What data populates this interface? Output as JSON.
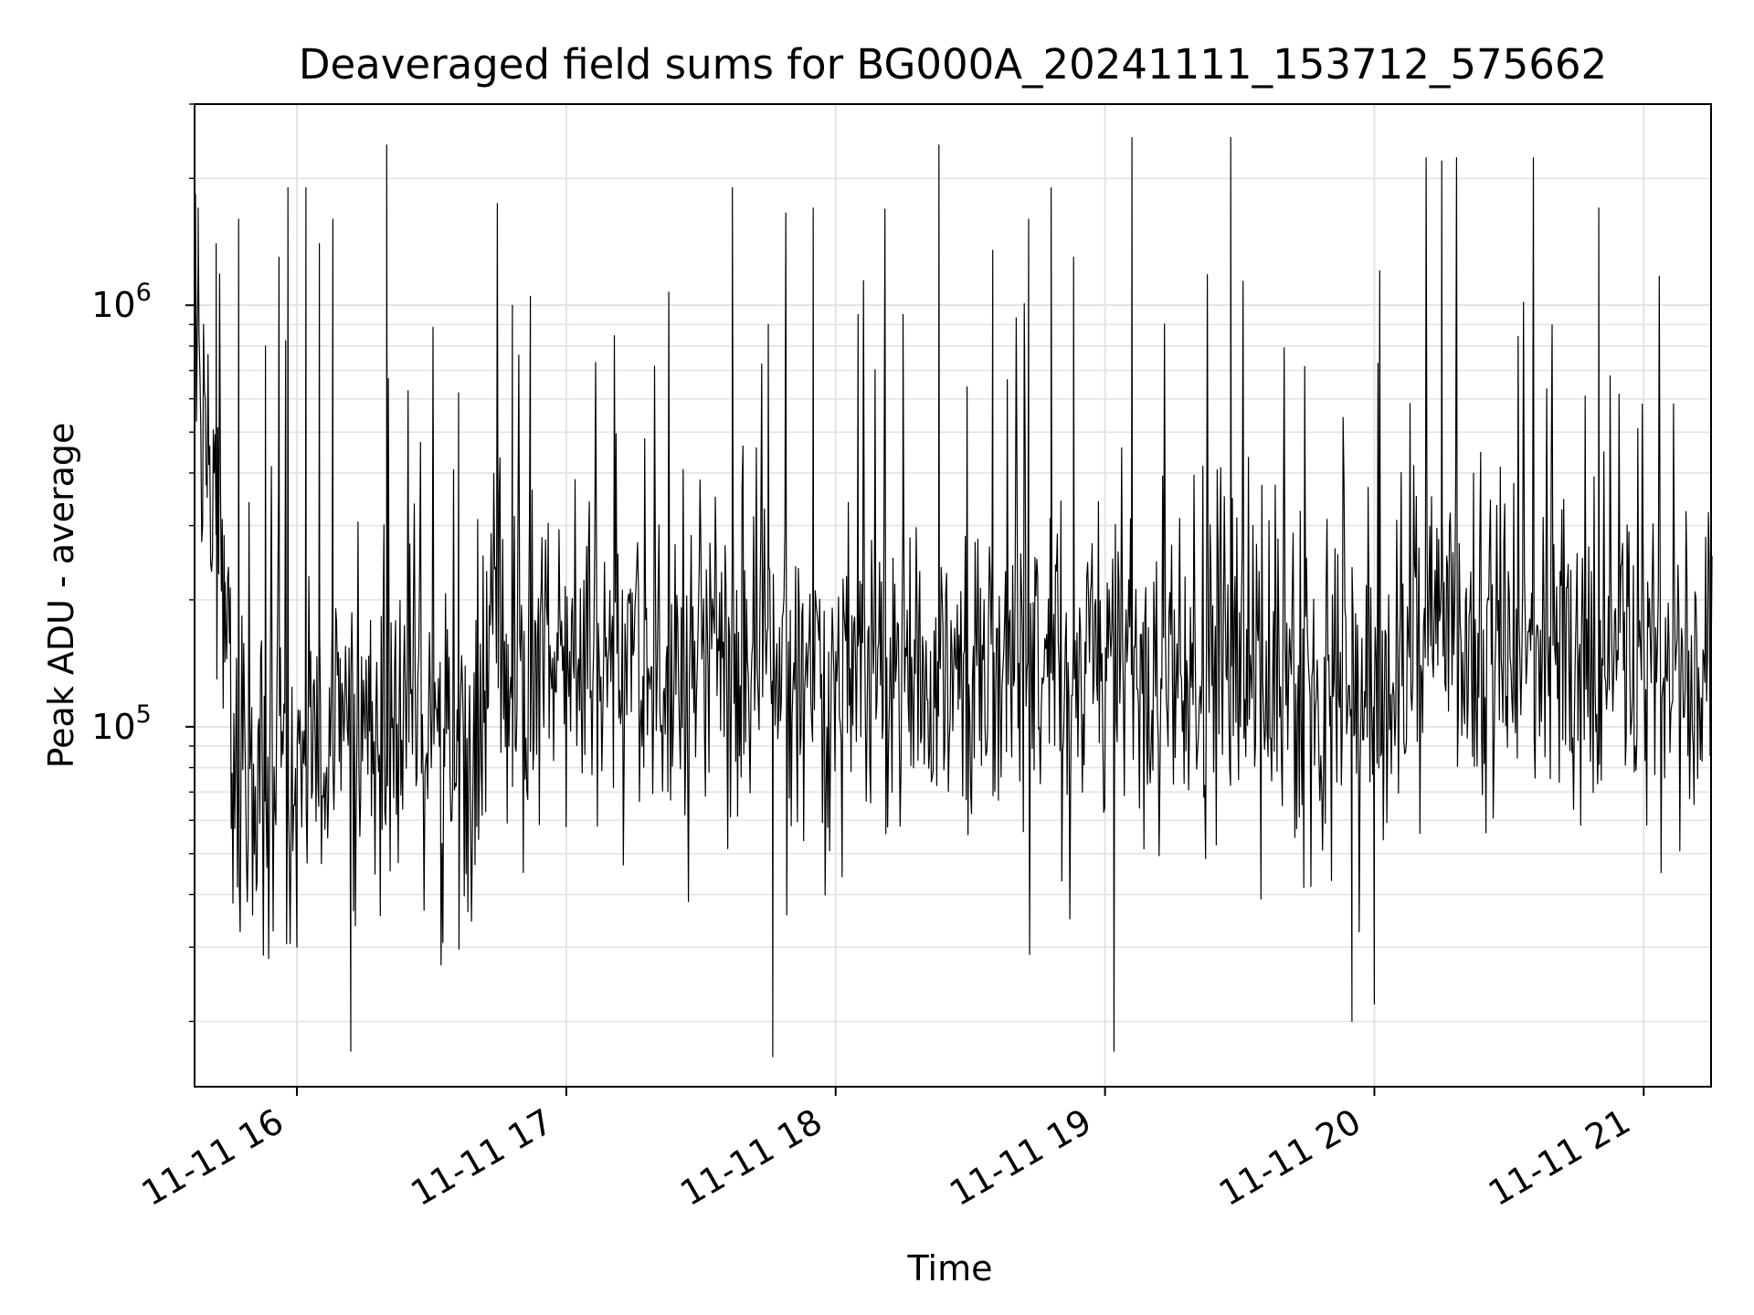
{
  "chart_data": {
    "type": "line",
    "title": "Deaveraged field sums for BG000A_20241111_153712_575662",
    "xlabel": "Time",
    "ylabel": "Peak ADU - average",
    "yscale": "log",
    "xlim": [
      "2024-11-11 15:37:12",
      "2024-11-11 21:15:00"
    ],
    "ylim": [
      14000,
      3000000
    ],
    "x_ticks": [
      "11-11 16",
      "11-11 17",
      "11-11 18",
      "11-11 19",
      "11-11 20",
      "11-11 21"
    ],
    "y_ticks": [
      {
        "base": "10",
        "exp": "5",
        "value": 100000
      },
      {
        "base": "10",
        "exp": "6",
        "value": 1000000
      }
    ],
    "grid": true,
    "series": [
      {
        "color": "#000000",
        "sampled_points": [
          [
            "2024-11-11 15:37:12",
            900000
          ],
          [
            "2024-11-11 15:38:00",
            1700000
          ],
          [
            "2024-11-11 15:40:00",
            350000
          ],
          [
            "2024-11-11 15:42:00",
            1400000
          ],
          [
            "2024-11-11 15:44:00",
            220000
          ],
          [
            "2024-11-11 15:47:00",
            1600000
          ],
          [
            "2024-11-11 15:50:00",
            60000
          ],
          [
            "2024-11-11 15:53:00",
            800000
          ],
          [
            "2024-11-11 15:56:00",
            1300000
          ],
          [
            "2024-11-11 15:58:00",
            1900000
          ],
          [
            "2024-11-11 16:00:00",
            30000
          ],
          [
            "2024-11-11 16:02:00",
            1900000
          ],
          [
            "2024-11-11 16:05:00",
            1400000
          ],
          [
            "2024-11-11 16:08:00",
            1600000
          ],
          [
            "2024-11-11 16:12:00",
            17000
          ],
          [
            "2024-11-11 16:20:00",
            2400000
          ],
          [
            "2024-11-11 16:36:00",
            620000
          ],
          [
            "2024-11-11 16:48:00",
            1000000
          ],
          [
            "2024-11-11 16:52:00",
            1050000
          ],
          [
            "2024-11-11 17:37:00",
            1900000
          ],
          [
            "2024-11-11 17:45:00",
            900000
          ],
          [
            "2024-11-11 17:46:00",
            16500
          ],
          [
            "2024-11-11 17:55:00",
            1700000
          ],
          [
            "2024-11-11 18:05:00",
            950000
          ],
          [
            "2024-11-11 18:15:00",
            950000
          ],
          [
            "2024-11-11 18:23:00",
            2400000
          ],
          [
            "2024-11-11 18:35:00",
            1350000
          ],
          [
            "2024-11-11 18:43:00",
            1600000
          ],
          [
            "2024-11-11 18:48:00",
            1900000
          ],
          [
            "2024-11-11 18:53:00",
            1300000
          ],
          [
            "2024-11-11 19:02:00",
            17000
          ],
          [
            "2024-11-11 19:06:00",
            2500000
          ],
          [
            "2024-11-11 19:28:00",
            2500000
          ],
          [
            "2024-11-11 19:55:00",
            20000
          ],
          [
            "2024-11-11 20:00:00",
            22000
          ],
          [
            "2024-11-11 20:15:00",
            2200000
          ],
          [
            "2024-11-11 20:50:00",
            1700000
          ],
          [
            "2024-11-11 21:15:00",
            150000
          ]
        ]
      }
    ]
  }
}
